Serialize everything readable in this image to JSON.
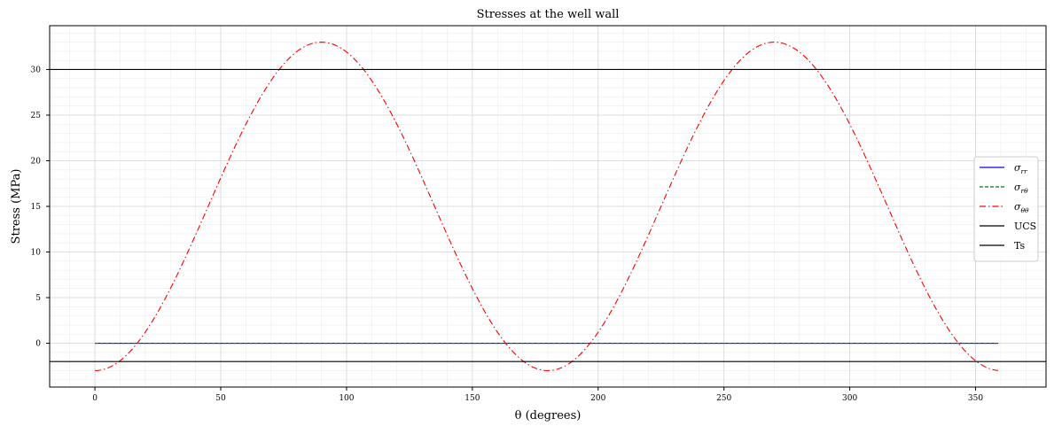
{
  "chart_data": {
    "type": "line",
    "title": "Stresses at the well wall",
    "xlabel": "θ (degrees)",
    "ylabel": "Stress (MPa)",
    "xlim": [
      -18,
      378
    ],
    "ylim": [
      -4.8,
      34.8
    ],
    "xticks": [
      0,
      50,
      100,
      150,
      200,
      250,
      300,
      350
    ],
    "yticks": [
      0,
      5,
      10,
      15,
      20,
      25,
      30
    ],
    "grid": true,
    "minor_grid": true,
    "legend_position": "center-right",
    "theta": {
      "start": 0,
      "end": 359,
      "step": 1
    },
    "series": [
      {
        "name": "σ_rr",
        "legend_label": "σ",
        "legend_sub": "rr",
        "color": "#0000ff",
        "dash": "solid",
        "kind": "formula",
        "a": 0,
        "b": 0
      },
      {
        "name": "σ_rθ",
        "legend_label": "σ",
        "legend_sub": "rθ",
        "color": "#008000",
        "dash": "dashed",
        "kind": "formula",
        "a": 0,
        "b": 0
      },
      {
        "name": "σ_θθ",
        "legend_label": "σ",
        "legend_sub": "θθ",
        "color": "#ff0000",
        "dash": "dashdot",
        "kind": "formula",
        "a": 15,
        "b": -18
      },
      {
        "name": "UCS",
        "legend_label": "UCS",
        "legend_sub": "",
        "color": "#000000",
        "dash": "solid",
        "kind": "hline",
        "value": 30
      },
      {
        "name": "Ts",
        "legend_label": "Ts",
        "legend_sub": "",
        "color": "#000000",
        "dash": "solid",
        "kind": "hline",
        "value": -2
      }
    ]
  }
}
